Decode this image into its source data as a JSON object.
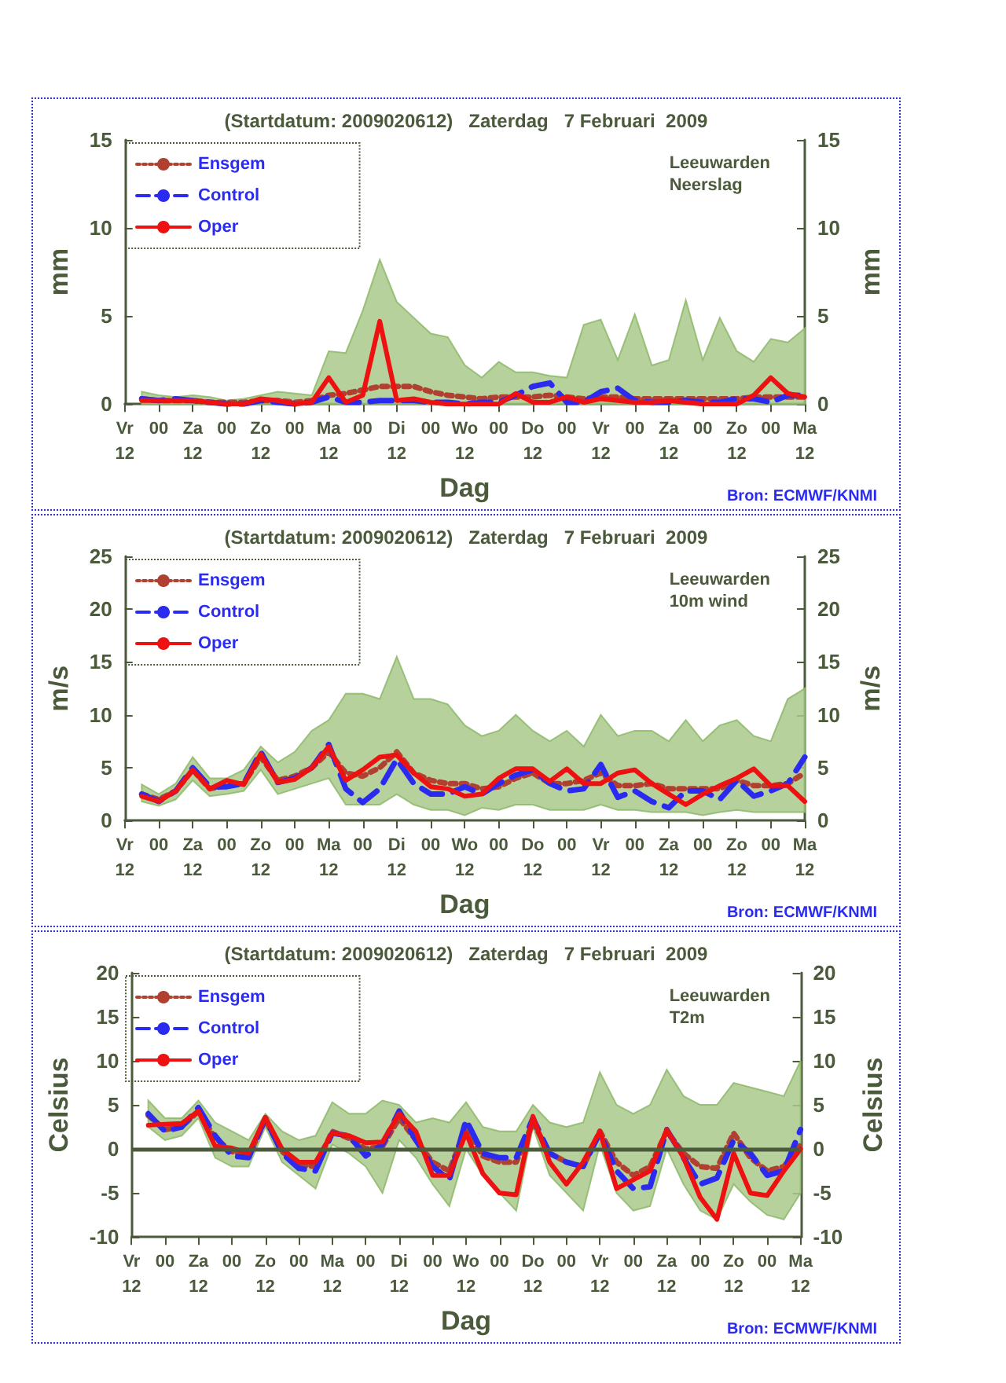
{
  "chart_data": [
    {
      "type": "line",
      "title": "(Startdatum: 2009020612)   Zaterdag   7 Februari  2009",
      "xlabel": "Dag",
      "ylabel": "mm",
      "y2label": "mm",
      "annotations": [
        "Leeuwarden\nNeerslag",
        "Bron: ECMWF/KNMI"
      ],
      "categories": [
        "Vr\n12",
        null,
        "00",
        null,
        "Za\n12",
        null,
        "00",
        null,
        "Zo\n12",
        null,
        "00",
        null,
        "Ma\n12",
        null,
        "00",
        null,
        "Di\n12",
        null,
        "00",
        null,
        "Wo\n12",
        null,
        "00",
        null,
        "Do\n12",
        null,
        "00",
        null,
        "Vr\n12",
        null,
        "00",
        null,
        "Za\n12",
        null,
        "00",
        null,
        "Zo\n12",
        null,
        "00",
        null,
        "Ma\n12"
      ],
      "ylim": [
        0,
        15
      ],
      "yticks": [
        0,
        5,
        10,
        15
      ],
      "y2lim": [
        0,
        15
      ],
      "y2ticks": [
        0,
        5,
        10,
        15
      ],
      "grid": false,
      "legend": "top left",
      "marker": "none",
      "series": [
        {
          "name": "Ensgem",
          "color": "#b04030",
          "line_style": "dotted",
          "values": [
            null,
            0.3,
            0.2,
            0.2,
            0.2,
            0.1,
            0.1,
            0.1,
            0.2,
            0.2,
            0.1,
            0.2,
            0.5,
            0.6,
            0.8,
            1,
            1,
            1,
            0.7,
            0.5,
            0.4,
            0.3,
            0.4,
            0.4,
            0.4,
            0.5,
            0.4,
            0.3,
            0.4,
            0.4,
            0.3,
            0.3,
            0.3,
            0.3,
            0.3,
            0.3,
            0.3,
            0.4,
            0.4,
            0.4,
            0.4
          ],
          "lower": [
            null,
            0,
            0,
            0,
            0,
            0,
            0,
            0,
            0,
            0,
            0,
            0,
            0,
            0,
            0,
            0,
            0,
            0,
            0,
            0,
            0,
            0,
            0,
            0,
            0,
            0,
            0,
            0,
            0,
            0,
            0,
            0,
            0,
            0,
            0,
            0,
            0,
            0,
            0,
            0,
            0
          ],
          "upper": [
            null,
            0.7,
            0.5,
            0.4,
            0.5,
            0.4,
            0.2,
            0.3,
            0.5,
            0.7,
            0.6,
            0.5,
            3,
            2.9,
            5.3,
            8.2,
            5.8,
            4.9,
            4,
            3.8,
            2.2,
            1.5,
            2.4,
            1.8,
            1.8,
            1.6,
            1.5,
            4.5,
            4.8,
            2.5,
            5.1,
            2.2,
            2.5,
            5.9,
            2.5,
            4.9,
            3,
            2.4,
            3.7,
            3.5,
            4.3
          ]
        },
        {
          "name": "Control",
          "color": "#2b2bf0",
          "line_style": "dashed",
          "values": [
            null,
            0.3,
            0.2,
            0.3,
            0.2,
            0.1,
            0,
            0,
            0.2,
            0.1,
            0,
            0.1,
            0.4,
            0.1,
            0.1,
            0.2,
            0.2,
            0.2,
            0.1,
            0.1,
            0,
            0.1,
            0.1,
            0.5,
            1,
            1.2,
            0.1,
            0.1,
            0.7,
            0.9,
            0.2,
            0.1,
            0.1,
            0.2,
            0.1,
            0.1,
            0.3,
            0.3,
            0.1,
            0.5,
            0.5
          ]
        },
        {
          "name": "Oper",
          "color": "#ee1111",
          "line_style": "solid",
          "values": [
            null,
            0.2,
            0.2,
            0.2,
            0.2,
            0.1,
            0,
            0,
            0.3,
            0.2,
            0,
            0.1,
            1.5,
            0.1,
            0.5,
            4.7,
            0.2,
            0.3,
            0.1,
            0,
            0,
            0,
            0,
            0.6,
            0.1,
            0.1,
            0.4,
            0.1,
            0.3,
            0.2,
            0.1,
            0.1,
            0.2,
            0.1,
            0,
            0,
            0,
            0.5,
            1.5,
            0.6,
            0.4
          ]
        }
      ]
    },
    {
      "type": "line",
      "title": "(Startdatum: 2009020612)   Zaterdag   7 Februari  2009",
      "xlabel": "Dag",
      "ylabel": "m/s",
      "y2label": "m/s",
      "annotations": [
        "Leeuwarden\n10m wind",
        "Bron: ECMWF/KNMI"
      ],
      "categories": [
        "Vr\n12",
        null,
        "00",
        null,
        "Za\n12",
        null,
        "00",
        null,
        "Zo\n12",
        null,
        "00",
        null,
        "Ma\n12",
        null,
        "00",
        null,
        "Di\n12",
        null,
        "00",
        null,
        "Wo\n12",
        null,
        "00",
        null,
        "Do\n12",
        null,
        "00",
        null,
        "Vr\n12",
        null,
        "00",
        null,
        "Za\n12",
        null,
        "00",
        null,
        "Zo\n12",
        null,
        "00",
        null,
        "Ma\n12"
      ],
      "ylim": [
        0,
        25
      ],
      "yticks": [
        0,
        5,
        10,
        15,
        20,
        25
      ],
      "y2lim": [
        0,
        25
      ],
      "y2ticks": [
        0,
        5,
        10,
        15,
        20,
        25
      ],
      "grid": false,
      "legend": "top left",
      "marker": "none",
      "series": [
        {
          "name": "Ensgem",
          "color": "#b04030",
          "line_style": "dotted",
          "values": [
            null,
            2.5,
            2,
            2.8,
            4.8,
            3,
            3.3,
            3.5,
            6,
            3.8,
            4.2,
            5,
            6.5,
            4.5,
            4.2,
            5,
            6.5,
            4.5,
            3.8,
            3.5,
            3.5,
            3,
            3.2,
            4,
            4.5,
            3.5,
            3.5,
            3.8,
            4.5,
            3.3,
            3.3,
            3.5,
            3,
            3,
            3,
            3,
            3.8,
            3.3,
            3.3,
            3.5,
            4.5
          ],
          "lower": [
            null,
            1.8,
            1.4,
            2,
            3.8,
            2.3,
            2.5,
            2.8,
            4.8,
            2.5,
            3,
            3.5,
            4,
            1.5,
            1.5,
            1.5,
            2.5,
            1.5,
            1,
            1,
            0.5,
            1.2,
            1,
            1.5,
            1.5,
            1,
            1,
            1,
            1.5,
            1,
            1,
            0.8,
            0.8,
            0.8,
            0.5,
            0.8,
            1,
            0.8,
            0.8,
            0.8,
            0.8
          ],
          "upper": [
            null,
            3.4,
            2.5,
            3.5,
            6,
            4,
            4,
            4.8,
            7,
            5.5,
            6.5,
            8.5,
            9.5,
            12,
            12,
            11.5,
            15.5,
            11.5,
            11.5,
            11,
            9,
            8,
            8.5,
            10,
            8.5,
            7.5,
            8.5,
            7,
            10,
            8,
            8.5,
            8.5,
            7.5,
            9.5,
            7.5,
            9,
            9.5,
            8,
            7.5,
            11.5,
            12.5
          ]
        },
        {
          "name": "Control",
          "color": "#2b2bf0",
          "line_style": "dashed",
          "values": [
            null,
            2.5,
            1.8,
            2.8,
            5,
            3.2,
            3.2,
            3.5,
            6.5,
            3.6,
            4,
            5,
            7.2,
            3,
            1.7,
            3,
            5.8,
            3.5,
            2.5,
            2.5,
            3.2,
            2.5,
            3.5,
            4.3,
            4.8,
            3.5,
            2.8,
            3,
            5.3,
            2.2,
            2.8,
            1.8,
            1.2,
            2.8,
            2.8,
            2,
            3.8,
            2.3,
            2.8,
            3.5,
            6
          ]
        },
        {
          "name": "Oper",
          "color": "#ee1111",
          "line_style": "solid",
          "values": [
            null,
            2.3,
            1.8,
            2.8,
            4.8,
            3,
            3.8,
            3.4,
            6.3,
            3.6,
            3.9,
            5,
            7,
            3.8,
            4.8,
            6,
            6.2,
            4.5,
            3.2,
            3,
            2.3,
            2.5,
            4,
            4.9,
            4.9,
            3.7,
            4.9,
            3.5,
            3.5,
            4.5,
            4.8,
            3.5,
            2.5,
            1.5,
            2.5,
            3.3,
            4,
            4.9,
            3.3,
            3.3,
            1.8
          ]
        }
      ]
    },
    {
      "type": "line",
      "title": "(Startdatum: 2009020612)   Zaterdag   7 Februari  2009",
      "xlabel": "Dag",
      "ylabel": "Celsius",
      "y2label": "Celsius",
      "annotations": [
        "Leeuwarden\nT2m",
        "Bron: ECMWF/KNMI"
      ],
      "categories": [
        "Vr\n12",
        null,
        "00",
        null,
        "Za\n12",
        null,
        "00",
        null,
        "Zo\n12",
        null,
        "00",
        null,
        "Ma\n12",
        null,
        "00",
        null,
        "Di\n12",
        null,
        "00",
        null,
        "Wo\n12",
        null,
        "00",
        null,
        "Do\n12",
        null,
        "00",
        null,
        "Vr\n12",
        null,
        "00",
        null,
        "Za\n12",
        null,
        "00",
        null,
        "Zo\n12",
        null,
        "00",
        null,
        "Ma\n12"
      ],
      "ylim": [
        -10,
        20
      ],
      "yticks": [
        -10,
        -5,
        0,
        5,
        10,
        15,
        20
      ],
      "y2lim": [
        -10,
        20
      ],
      "y2ticks": [
        -10,
        -5,
        0,
        5,
        10,
        15,
        20
      ],
      "grid": false,
      "legend": "top left",
      "marker": "none",
      "ref_lines": [
        {
          "axis": "y",
          "value": 0,
          "color": "#4a5a3a"
        }
      ],
      "series": [
        {
          "name": "Ensgem",
          "color": "#b04030",
          "line_style": "dotted",
          "values": [
            null,
            3.8,
            2.2,
            2.5,
            4.3,
            1.2,
            -0.3,
            -0.8,
            3.3,
            -0.3,
            -1.8,
            -2,
            2,
            1.2,
            0,
            0.3,
            3.5,
            1,
            -1.5,
            -2.5,
            2.5,
            -0.8,
            -1.5,
            -1.5,
            3,
            -0.5,
            -1.5,
            -2,
            2,
            -1.5,
            -3,
            -2,
            2,
            -0.5,
            -2,
            -2.2,
            1.8,
            -1,
            -2.5,
            -2,
            0.5
          ],
          "lower": [
            null,
            2.5,
            1,
            1.5,
            3.5,
            -1,
            -2,
            -2,
            2.5,
            -1.5,
            -3,
            -4.5,
            0.5,
            -0.5,
            -2,
            -5,
            1,
            -1,
            -4,
            -6.5,
            0,
            -3,
            -5,
            -7,
            2.5,
            -3,
            -5,
            -7,
            0.5,
            -5,
            -7,
            -6.5,
            0,
            -4,
            -7,
            -8,
            -4,
            -6,
            -7.5,
            -8,
            -5
          ],
          "upper": [
            null,
            5.5,
            3.5,
            3.5,
            5.5,
            3,
            2,
            1,
            4,
            2,
            1,
            1.5,
            5.3,
            4,
            4,
            5.5,
            5,
            3,
            3.5,
            3,
            5.3,
            2.5,
            2,
            2,
            5,
            3,
            2.5,
            3,
            8.7,
            5,
            4,
            5,
            9,
            6,
            5,
            5,
            7.5,
            7,
            6.5,
            6,
            10
          ]
        },
        {
          "name": "Control",
          "color": "#2b2bf0",
          "line_style": "dashed",
          "values": [
            null,
            4,
            2,
            2.5,
            4.7,
            1.5,
            -0.8,
            -1,
            3.5,
            -0.5,
            -2.2,
            -2.5,
            1.8,
            1.5,
            -0.8,
            0.5,
            4.3,
            1,
            -2,
            -3.5,
            3.3,
            -0.5,
            -1,
            -1,
            3.5,
            -0.5,
            -1.5,
            -2,
            1.8,
            -2.5,
            -4.5,
            -4.3,
            2.2,
            -1,
            -4,
            -3.3,
            1,
            -0.5,
            -3,
            -2.5,
            2.2
          ]
        },
        {
          "name": "Oper",
          "color": "#ee1111",
          "line_style": "solid",
          "values": [
            null,
            2.7,
            2.8,
            2.9,
            4.3,
            0.3,
            0.1,
            -0.5,
            3.6,
            0,
            -1.5,
            -1.5,
            1.8,
            1.5,
            0.7,
            0.8,
            4,
            2,
            -3,
            -3,
            1.8,
            -2.8,
            -5,
            -5.2,
            3.7,
            -1.5,
            -4,
            -1.5,
            2,
            -4.5,
            -3.5,
            -2.5,
            2.2,
            -1,
            -5.5,
            -8,
            -0.5,
            -5,
            -5.3,
            -2.5,
            0
          ]
        }
      ]
    }
  ]
}
